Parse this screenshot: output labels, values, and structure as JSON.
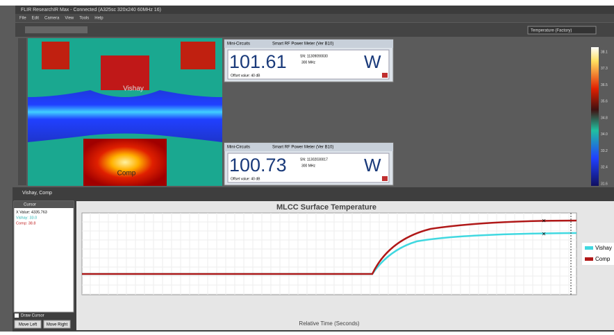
{
  "window": {
    "title": "FLIR ResearchIR Max - Connected (A325sc 320x240 60MHz 16)",
    "menu": [
      "File",
      "Edit",
      "Camera",
      "View",
      "Tools",
      "Help"
    ],
    "palette_select": "Temperature (Factory)"
  },
  "meters": [
    {
      "brand": "Mini-Circuits",
      "model": "Smart RF Power Meter (Ver B10)",
      "reading": "101.61",
      "unit": "W",
      "serial": "SN: 11309090030",
      "freq": "300 MHz",
      "offset": "Offset value: 40 dB"
    },
    {
      "brand": "Mini-Circuits",
      "model": "Smart RF Power Meter (Ver B10)",
      "reading": "100.73",
      "unit": "W",
      "serial": "SN: 11302030017",
      "freq": "300 MHz",
      "offset": "Offset value: 40 dB"
    }
  ],
  "thermal": {
    "labels": [
      "Vishay",
      "Comp"
    ],
    "scale": [
      "38.1",
      "37.3",
      "36.5",
      "35.6",
      "34.8",
      "34.0",
      "33.2",
      "32.4",
      "31.6"
    ]
  },
  "panel": {
    "title": "Vishay, Comp",
    "cursor_title": "Cursor",
    "cursor_rows": [
      "X Value: 4335.763",
      "Vishay: 33.0",
      "Comp: 38.8"
    ],
    "draw_cursor": "Draw Cursor",
    "buttons": [
      "Move Left",
      "Move Right"
    ],
    "chart_title": "MLCC Surface Temperature",
    "legend": [
      "Vishay",
      "Comp"
    ],
    "x_label": "Relative Time (Seconds)"
  }
}
